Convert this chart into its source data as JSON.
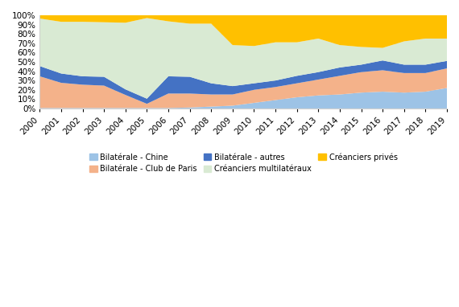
{
  "years": [
    2000,
    2001,
    2002,
    2003,
    2004,
    2005,
    2006,
    2007,
    2008,
    2009,
    2010,
    2011,
    2012,
    2013,
    2014,
    2015,
    2016,
    2017,
    2018,
    2019
  ],
  "bilaterale_chine": [
    0.5,
    0.5,
    0.5,
    0.5,
    0.5,
    0.5,
    0.5,
    1.0,
    2.0,
    3.0,
    6.0,
    9.0,
    12.0,
    14.0,
    15.0,
    17.0,
    18.0,
    17.0,
    18.0,
    22.0
  ],
  "bilaterale_club_paris": [
    34.0,
    27.0,
    25.0,
    24.0,
    14.0,
    4.5,
    15.5,
    15.0,
    13.0,
    12.0,
    14.0,
    14.0,
    15.0,
    17.0,
    20.0,
    22.0,
    23.0,
    21.0,
    20.0,
    21.0
  ],
  "bilaterale_autres": [
    11.0,
    10.0,
    9.0,
    9.5,
    6.0,
    5.5,
    18.5,
    18.0,
    12.0,
    9.0,
    7.0,
    7.0,
    8.0,
    8.0,
    9.0,
    8.0,
    10.5,
    9.0,
    9.0,
    8.0
  ],
  "creanciers_multilateraux": [
    51.0,
    55.5,
    58.5,
    58.5,
    71.5,
    86.5,
    59.0,
    57.0,
    64.0,
    44.0,
    40.0,
    41.0,
    36.0,
    36.0,
    24.0,
    19.0,
    13.5,
    25.0,
    28.0,
    24.0
  ],
  "creanciers_prives": [
    3.5,
    7.0,
    7.0,
    7.5,
    8.0,
    3.0,
    6.5,
    9.0,
    9.0,
    32.0,
    33.0,
    29.0,
    29.0,
    25.0,
    32.0,
    34.0,
    35.0,
    28.0,
    25.0,
    25.0
  ],
  "colors": {
    "bilaterale_chine": "#9dc3e6",
    "bilaterale_club_paris": "#f4b28a",
    "bilaterale_autres": "#4472c4",
    "creanciers_multilateraux": "#d9ead3",
    "creanciers_prives": "#ffc000"
  },
  "legend_labels_row1": [
    "Bilatérale - Chine",
    "Bilatérale - Club de Paris",
    "Bilatérale - autres"
  ],
  "legend_labels_row2": [
    "Créanciers multilatéraux",
    "Créanciers privés"
  ],
  "ylim": [
    0,
    100
  ],
  "background_color": "#ffffff"
}
